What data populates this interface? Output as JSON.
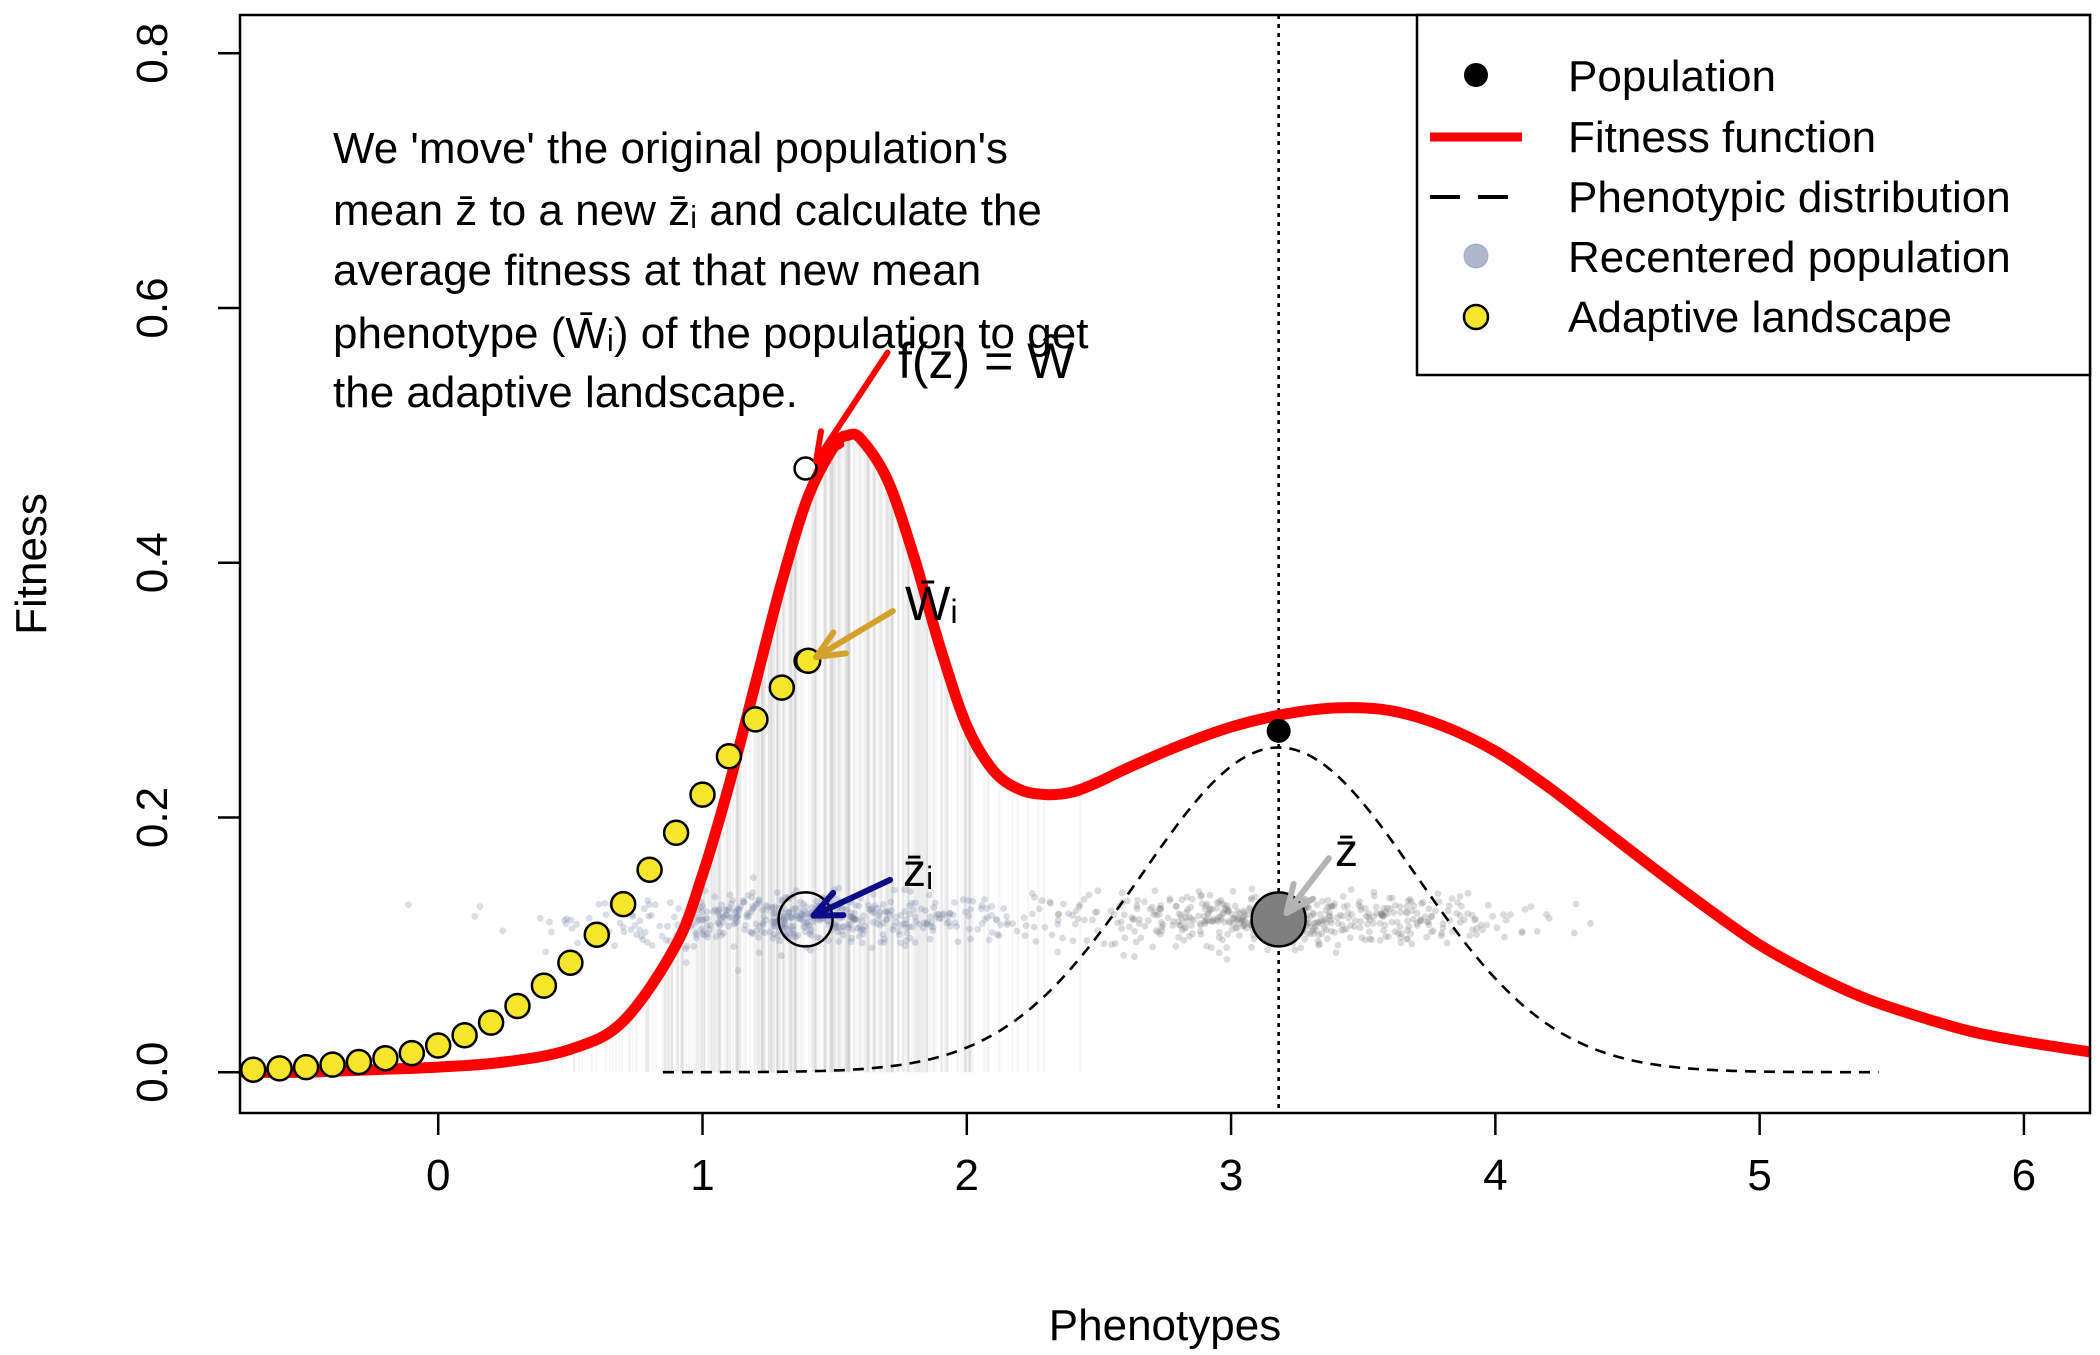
{
  "chart_data": {
    "type": "line",
    "title": "",
    "xlabel": "Phenotypes",
    "ylabel": "Fitness",
    "xlim": [
      -0.75,
      6.25
    ],
    "ylim": [
      -0.032,
      0.83
    ],
    "x_ticks": [
      "0",
      "1",
      "2",
      "3",
      "4",
      "5",
      "6"
    ],
    "y_ticks": [
      "0.0",
      "0.2",
      "0.4",
      "0.6",
      "0.8"
    ],
    "grid": false,
    "legend_placement": "top-right",
    "legend": [
      {
        "label": "Population",
        "marker": "filled-black-circle"
      },
      {
        "label": "Fitness function",
        "marker": "red-line"
      },
      {
        "label": "Phenotypic distribution",
        "marker": "black-dashed-line"
      },
      {
        "label": "Recentered population",
        "marker": "blue-grey-circle"
      },
      {
        "label": "Adaptive landscape",
        "marker": "yellow-circle"
      }
    ],
    "annotation": {
      "lines": [
        "We 'move' the original population's",
        "mean z̄ to a new z̄ᵢ and calculate the",
        "average fitness at that new mean",
        "phenotype (W̄ᵢ) of the population to get",
        "the adaptive landscape."
      ]
    },
    "labels": {
      "fitness_point": "f(z) = Ŵ",
      "mean_fitness": "W̄ᵢ",
      "new_mean": "z̄ᵢ",
      "original_mean": "z̄"
    },
    "fitness_function": {
      "color": "#ff0000",
      "x": [
        -0.75,
        -0.5,
        -0.25,
        0.0,
        0.25,
        0.5,
        0.7,
        0.9,
        1.0,
        1.1,
        1.2,
        1.3,
        1.4,
        1.5,
        1.55,
        1.6,
        1.7,
        1.8,
        1.9,
        2.0,
        2.1,
        2.2,
        2.3,
        2.4,
        2.5,
        2.6,
        2.8,
        3.0,
        3.2,
        3.4,
        3.6,
        3.8,
        4.0,
        4.2,
        4.4,
        4.6,
        4.8,
        5.0,
        5.2,
        5.4,
        5.6,
        5.8,
        6.0,
        6.25
      ],
      "y": [
        0.0,
        0.0,
        0.002,
        0.004,
        0.008,
        0.018,
        0.04,
        0.1,
        0.155,
        0.225,
        0.305,
        0.385,
        0.452,
        0.492,
        0.5,
        0.497,
        0.465,
        0.405,
        0.333,
        0.272,
        0.237,
        0.222,
        0.218,
        0.22,
        0.228,
        0.238,
        0.256,
        0.271,
        0.281,
        0.286,
        0.284,
        0.272,
        0.252,
        0.224,
        0.192,
        0.16,
        0.129,
        0.1,
        0.077,
        0.058,
        0.044,
        0.032,
        0.024,
        0.016
      ]
    },
    "phenotypic_distribution": {
      "color": "#000000",
      "mean": 3.18,
      "sd": 0.52,
      "peak": 0.255,
      "x_range": [
        0.85,
        5.45
      ]
    },
    "population_point": {
      "x": 3.18,
      "y": 0.268,
      "color": "#000000"
    },
    "mean_line_x": 3.18,
    "recentered_population": {
      "color": "#7885aa",
      "y_level": 0.12,
      "center": 1.38,
      "sd": 0.55
    },
    "original_population": {
      "color": "#7f7f7f",
      "y_level": 0.12,
      "center": 3.18,
      "sd": 0.55
    },
    "mean_markers": [
      {
        "name": "new mean",
        "x": 1.39,
        "y": 0.12,
        "fill": "none"
      },
      {
        "name": "original mean",
        "x": 3.18,
        "y": 0.12,
        "fill": "#7f7f7f"
      }
    ],
    "fitness_points_at_new_mean": [
      {
        "x": 1.39,
        "y": 0.474
      },
      {
        "x": 1.39,
        "y": 0.323
      }
    ],
    "adaptive_landscape": {
      "color": "#f5e62b",
      "x": [
        -0.7,
        -0.6,
        -0.5,
        -0.4,
        -0.3,
        -0.2,
        -0.1,
        0.0,
        0.1,
        0.2,
        0.3,
        0.4,
        0.5,
        0.6,
        0.7,
        0.8,
        0.9,
        1.0,
        1.1,
        1.2,
        1.3,
        1.4
      ],
      "y": [
        0.002,
        0.003,
        0.004,
        0.006,
        0.008,
        0.011,
        0.015,
        0.021,
        0.029,
        0.039,
        0.052,
        0.068,
        0.086,
        0.108,
        0.132,
        0.159,
        0.188,
        0.218,
        0.248,
        0.277,
        0.302,
        0.323
      ]
    },
    "arrows": [
      {
        "name": "fitness-point",
        "color": "#ff0000",
        "from": [
          1.7,
          0.565
        ],
        "to": [
          1.43,
          0.48
        ]
      },
      {
        "name": "mean-fitness",
        "color": "#d4a22a",
        "from": [
          1.72,
          0.362
        ],
        "to": [
          1.43,
          0.326
        ]
      },
      {
        "name": "new-mean",
        "color": "#0d0d8a",
        "from": [
          1.71,
          0.151
        ],
        "to": [
          1.42,
          0.123
        ]
      },
      {
        "name": "original-mean",
        "color": "#b4b4b4",
        "from": [
          3.37,
          0.168
        ],
        "to": [
          3.21,
          0.125
        ]
      }
    ]
  }
}
